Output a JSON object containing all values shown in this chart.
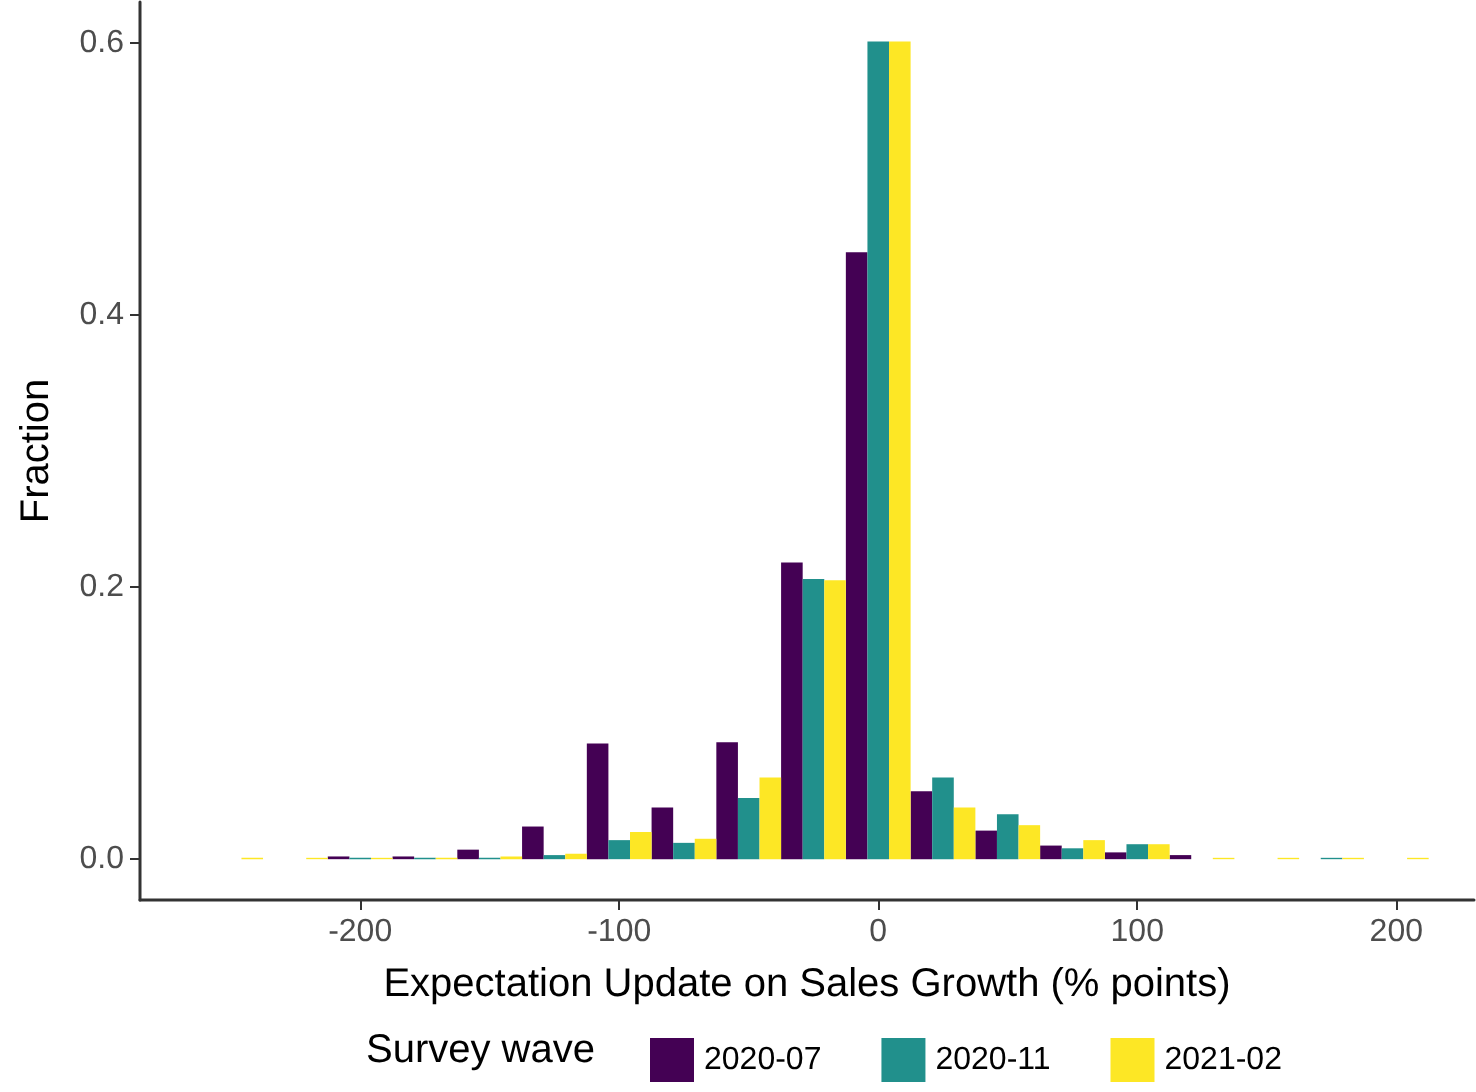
{
  "chart_data": {
    "type": "histogram",
    "xlabel": "Expectation Update on Sales Growth (% points)",
    "ylabel": "Fraction",
    "legend_title": "Survey wave",
    "bins": [
      -262.5,
      -237.5,
      -212.5,
      -187.5,
      -162.5,
      -137.5,
      -112.5,
      -87.5,
      -62.5,
      -37.5,
      -12.5,
      12.5,
      37.5,
      62.5,
      87.5,
      112.5,
      137.5,
      162.5,
      187.5,
      212.5
    ],
    "series": [
      {
        "name": "2020-07",
        "color": "#440154",
        "values": [
          0,
          0,
          0.002,
          0.002,
          0.007,
          0.024,
          0.085,
          0.038,
          0.086,
          0.218,
          0.446,
          0.05,
          0.021,
          0.01,
          0.005,
          0.003,
          0,
          0,
          0
        ]
      },
      {
        "name": "2020-11",
        "color": "#21908c",
        "values": [
          0,
          0,
          0.001,
          0.001,
          0.001,
          0.003,
          0.014,
          0.012,
          0.045,
          0.206,
          0.601,
          0.06,
          0.033,
          0.008,
          0.011,
          0,
          0,
          0.001,
          0
        ]
      },
      {
        "name": "2021-02",
        "color": "#fde725",
        "values": [
          0.001,
          0.001,
          0.001,
          0.001,
          0.002,
          0.004,
          0.02,
          0.015,
          0.06,
          0.205,
          0.601,
          0.038,
          0.025,
          0.014,
          0.011,
          0.001,
          0.001,
          0.001,
          0.001
        ]
      }
    ],
    "xlim": [
      -285,
      230
    ],
    "xticks": [
      -200,
      -100,
      0,
      100,
      200
    ],
    "ylim": [
      -0.03,
      0.63
    ],
    "yticks": [
      {
        "value": 0,
        "label": "0.0"
      },
      0.2,
      0.4,
      0.6
    ],
    "grid": false,
    "legend": "bottom"
  }
}
